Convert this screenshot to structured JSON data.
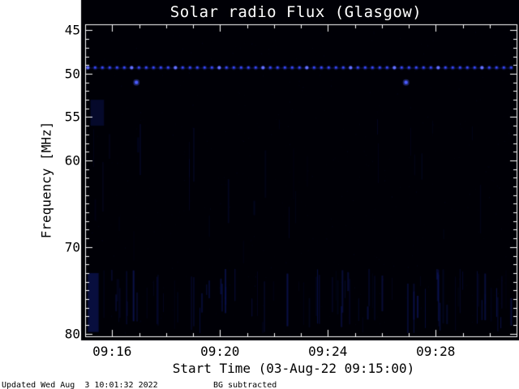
{
  "colors": {
    "page_bg": "#ffffff",
    "plot_bg": "#000006",
    "frame": "#ffffff",
    "title_text": "#ffffff",
    "axis_text": "#000000",
    "rfi_dot": "#3a4aff",
    "rfi_dot_bright": "#6672ff",
    "rfi_glow": "rgba(50,70,255,0.25)",
    "rfi_faint_line": "rgba(40,60,220,0.30)",
    "noise_streak": "rgba(18,30,130,ALPHA)",
    "burst": "#4a5aff",
    "burst_glow": "rgba(80,100,255,0.35)"
  },
  "footer": {
    "updated": "Updated Wed Aug  3 10:01:32 2022",
    "bg_note": "BG subtracted"
  },
  "chart_data": {
    "type": "heatmap",
    "title": "Solar radio Flux (Glasgow)",
    "xlabel": "Start Time (03-Aug-22 09:15:00)",
    "ylabel": "Frequency [MHz]",
    "x_start": "09:15:00",
    "x_end": "09:31:00",
    "x_major_ticks": [
      {
        "label": "09:16",
        "min": 1
      },
      {
        "label": "09:20",
        "min": 5
      },
      {
        "label": "09:24",
        "min": 9
      },
      {
        "label": "09:28",
        "min": 13
      }
    ],
    "x_minor_step_min": 1,
    "y_axis_inverted": true,
    "y_range": [
      44.3,
      80.3
    ],
    "y_major_ticks": [
      {
        "label": "45",
        "f": 45
      },
      {
        "label": "50",
        "f": 50
      },
      {
        "label": "55",
        "f": 55
      },
      {
        "label": "60",
        "f": 60
      },
      {
        "label": "70",
        "f": 70
      },
      {
        "label": "80",
        "f": 80
      }
    ],
    "y_minor_step": 1,
    "background_level": "near-zero flux (black, background subtracted)",
    "features": {
      "rfi_line": {
        "freq_mhz": 49.3,
        "t_start_min": 0.1,
        "t_end_min": 15.85,
        "dot_spacing_px": 9,
        "desc": "persistent dotted RFI carrier just above 50 MHz across full interval"
      },
      "point_bursts": [
        {
          "time_min": 1.9,
          "freq_mhz": 51.0
        },
        {
          "time_min": 11.9,
          "freq_mhz": 51.0
        }
      ],
      "noise_bands": [
        {
          "freq_min": 72.5,
          "freq_max": 80.0,
          "streak_count": 85,
          "seed": 1234,
          "alpha_max": 0.45
        },
        {
          "freq_min": 55.0,
          "freq_max": 72.0,
          "streak_count": 30,
          "seed": 77,
          "alpha_max": 0.16
        }
      ],
      "patches": [
        {
          "t_min": 0.2,
          "t_max": 0.7,
          "freq_min": 53.0,
          "freq_max": 56.0,
          "alpha": 0.3
        },
        {
          "t_min": 0.1,
          "t_max": 0.5,
          "freq_min": 73.0,
          "freq_max": 79.8,
          "alpha": 0.45
        }
      ],
      "speckle": {
        "count": 700,
        "seed": 99,
        "alpha_max": 0.12
      }
    }
  }
}
